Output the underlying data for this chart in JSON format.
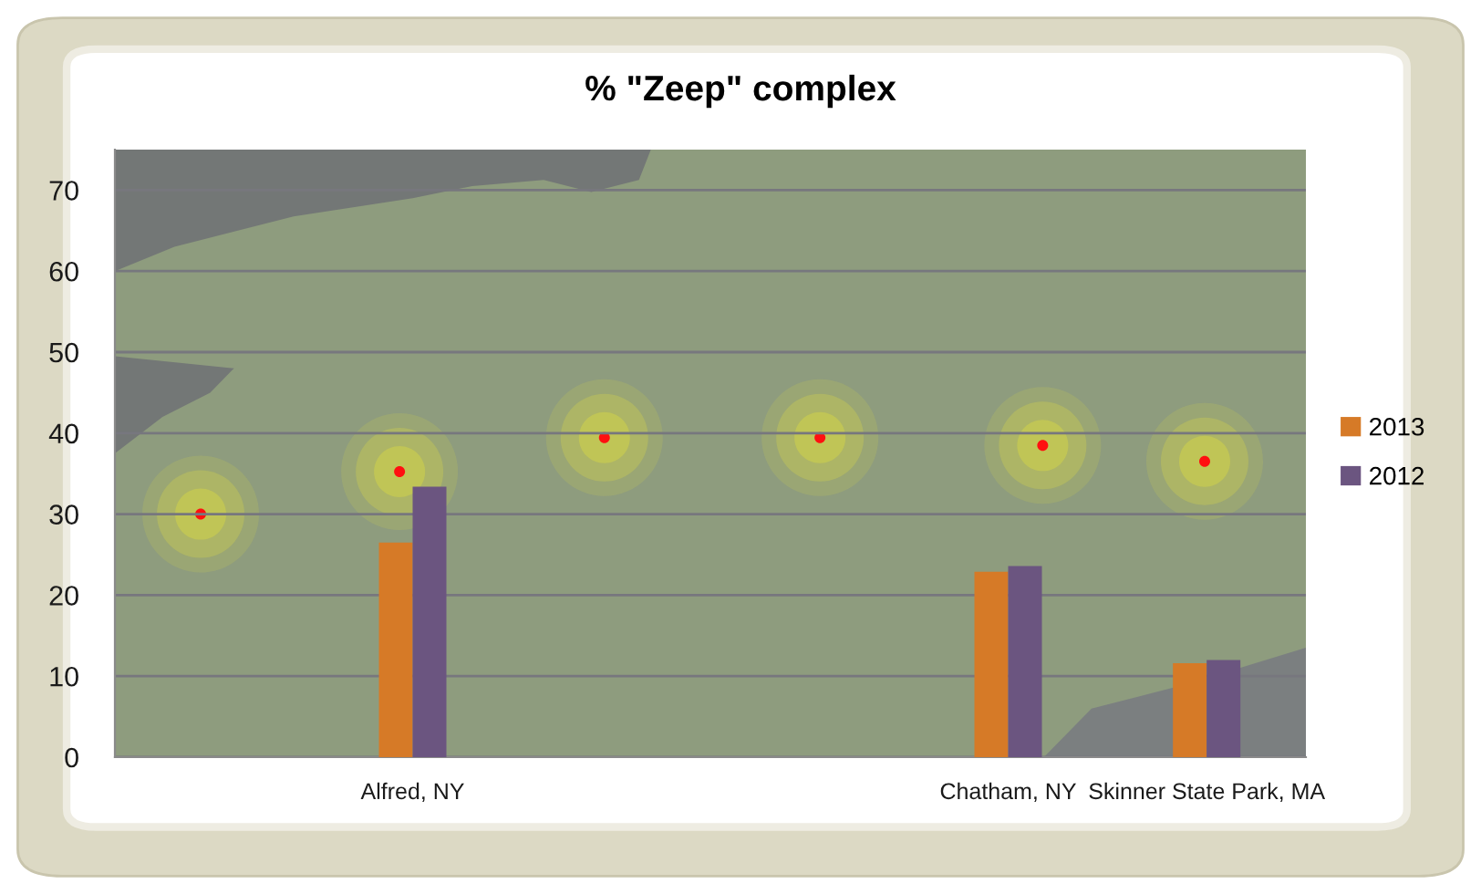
{
  "chart_data": {
    "type": "bar",
    "title": "% \"Zeep\" complex",
    "categories": [
      null,
      "Alfred, NY",
      null,
      null,
      "Chatham, NY",
      "Skinner State Park, MA"
    ],
    "series": [
      {
        "name": "2013",
        "color": "#d67a27",
        "values": [
          null,
          26.5,
          null,
          null,
          22.9,
          11.6
        ]
      },
      {
        "name": "2012",
        "color": "#6b5580",
        "values": [
          null,
          33.4,
          null,
          null,
          23.6,
          12.0
        ]
      }
    ],
    "ylim": [
      0,
      75
    ],
    "yticks": [
      0,
      10,
      20,
      30,
      40,
      50,
      60,
      70
    ],
    "grid": "y",
    "legend": "right"
  }
}
